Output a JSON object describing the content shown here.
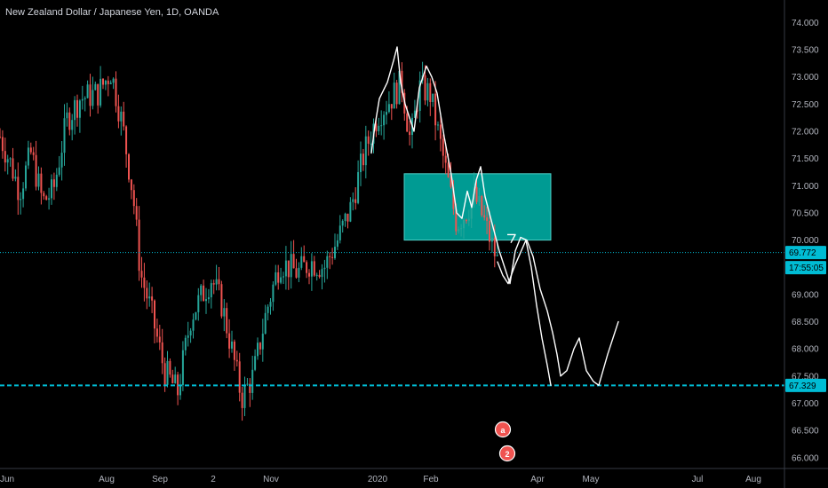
{
  "chart_data": {
    "type": "candlestick",
    "title": "New Zealand Dollar / Japanese Yen, 1D, OANDA",
    "y_ticks": [
      "74.000",
      "73.500",
      "73.000",
      "72.500",
      "72.000",
      "71.500",
      "71.000",
      "70.500",
      "70.000",
      "69.500",
      "69.000",
      "68.500",
      "68.000",
      "67.500",
      "67.000",
      "66.500",
      "66.000"
    ],
    "y_values": [
      74.0,
      73.5,
      73.0,
      72.5,
      72.0,
      71.5,
      71.0,
      70.5,
      70.0,
      69.5,
      69.0,
      68.5,
      68.0,
      67.5,
      67.0,
      66.5,
      66.0
    ],
    "ylim": [
      65.85,
      74.3
    ],
    "x_ticks": [
      "Jun",
      "Aug",
      "Sep",
      "2",
      "Nov",
      "2020",
      "Feb",
      "Apr",
      "May",
      "Jul",
      "Aug"
    ],
    "x_tick_day_index": [
      8,
      120,
      180,
      240,
      305,
      425,
      485,
      605,
      665,
      785,
      848
    ],
    "last_price_label": "69.772",
    "last_price": 69.772,
    "countdown_label": "17:55:05",
    "support_label": "67.329",
    "support_price": 67.329,
    "candles_anchor_path": [
      [
        0,
        71.9
      ],
      [
        12,
        71.4
      ],
      [
        22,
        70.9
      ],
      [
        35,
        71.6
      ],
      [
        48,
        70.7
      ],
      [
        60,
        70.9
      ],
      [
        75,
        72.2
      ],
      [
        90,
        72.6
      ],
      [
        110,
        72.7
      ],
      [
        125,
        73.1
      ],
      [
        138,
        72.1
      ],
      [
        150,
        70.8
      ],
      [
        158,
        69.4
      ],
      [
        170,
        68.7
      ],
      [
        185,
        67.6
      ],
      [
        200,
        67.2
      ],
      [
        215,
        68.6
      ],
      [
        228,
        69.0
      ],
      [
        238,
        69.3
      ],
      [
        250,
        68.8
      ],
      [
        262,
        67.9
      ],
      [
        272,
        67.1
      ],
      [
        285,
        67.5
      ],
      [
        300,
        68.7
      ],
      [
        315,
        69.6
      ],
      [
        335,
        69.4
      ],
      [
        350,
        69.6
      ],
      [
        365,
        69.5
      ],
      [
        380,
        70.0
      ],
      [
        395,
        70.6
      ],
      [
        410,
        71.6
      ],
      [
        425,
        72.3
      ],
      [
        440,
        72.6
      ],
      [
        452,
        72.9
      ],
      [
        462,
        71.8
      ],
      [
        472,
        72.8
      ],
      [
        484,
        72.7
      ],
      [
        494,
        71.9
      ],
      [
        504,
        71.1
      ],
      [
        514,
        70.3
      ],
      [
        524,
        70.5
      ],
      [
        534,
        70.8
      ],
      [
        544,
        70.4
      ],
      [
        552,
        70.0
      ],
      [
        560,
        69.6
      ]
    ],
    "zone": {
      "x_start_day": 455,
      "x_end_day": 620,
      "price_top": 71.22,
      "price_bottom": 70.0,
      "color": "#00a8a0"
    },
    "drawing_path": [
      [
        418,
        71.6
      ],
      [
        422,
        72.1
      ],
      [
        427,
        72.6
      ],
      [
        436,
        72.9
      ],
      [
        443,
        73.3
      ],
      [
        447,
        73.55
      ],
      [
        451,
        72.9
      ],
      [
        456,
        72.5
      ],
      [
        462,
        72.2
      ],
      [
        466,
        72.0
      ],
      [
        472,
        72.8
      ],
      [
        480,
        73.2
      ],
      [
        486,
        73.0
      ],
      [
        492,
        72.7
      ],
      [
        500,
        71.9
      ],
      [
        508,
        71.2
      ],
      [
        514,
        70.5
      ],
      [
        520,
        70.4
      ],
      [
        526,
        70.9
      ],
      [
        531,
        70.6
      ],
      [
        536,
        71.1
      ],
      [
        541,
        71.35
      ],
      [
        546,
        70.8
      ],
      [
        554,
        70.3
      ],
      [
        562,
        69.8
      ],
      [
        568,
        69.5
      ],
      [
        574,
        69.2
      ],
      [
        580,
        69.8
      ],
      [
        586,
        70.05
      ],
      [
        593,
        70.0
      ],
      [
        600,
        69.7
      ],
      [
        608,
        69.1
      ],
      [
        616,
        68.7
      ],
      [
        622,
        68.3
      ],
      [
        627,
        67.9
      ],
      [
        631,
        67.5
      ],
      [
        638,
        67.6
      ],
      [
        646,
        68.0
      ],
      [
        652,
        68.2
      ],
      [
        660,
        67.6
      ],
      [
        668,
        67.4
      ],
      [
        674,
        67.33
      ],
      [
        684,
        67.9
      ],
      [
        696,
        68.5
      ]
    ],
    "projection_path": [
      [
        560,
        69.6
      ],
      [
        566,
        69.35
      ],
      [
        572,
        69.2
      ],
      [
        580,
        69.55
      ],
      [
        592,
        70.0
      ],
      [
        598,
        69.5
      ],
      [
        604,
        68.8
      ],
      [
        610,
        68.2
      ],
      [
        616,
        67.7
      ],
      [
        620,
        67.33
      ]
    ],
    "arrow_head": [
      [
        571,
        70.1
      ],
      [
        580,
        70.1
      ],
      [
        575,
        69.95
      ]
    ],
    "colors": {
      "background": "#000000",
      "up": "#26a69a",
      "down": "#ef5350",
      "zone": "#00a8a0",
      "support_line": "#00bcd4",
      "price_line": "#00bcd4",
      "drawing": "#ffffff",
      "badge_bg": "#ef5350"
    }
  }
}
